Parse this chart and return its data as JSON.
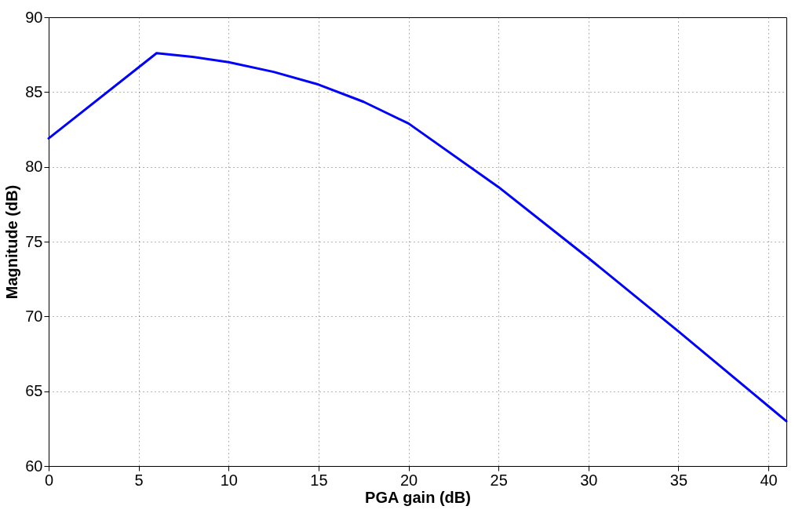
{
  "chart_data": {
    "type": "line",
    "xlabel": "PGA gain (dB)",
    "ylabel": "Magnitude (dB)",
    "x": [
      0,
      6,
      8,
      10,
      12.5,
      15,
      17.5,
      20,
      25,
      30,
      35,
      40,
      41
    ],
    "series": [
      {
        "color": "#0000ff",
        "values": [
          81.9,
          87.6,
          87.35,
          87.0,
          86.35,
          85.5,
          84.35,
          82.9,
          78.65,
          73.9,
          69.0,
          64.0,
          63.0
        ]
      }
    ],
    "xlim": [
      0,
      41
    ],
    "xticks": [
      0,
      5,
      10,
      15,
      20,
      25,
      30,
      35,
      40
    ],
    "ylim": [
      60,
      90
    ],
    "yticks": [
      60,
      65,
      70,
      75,
      80,
      85,
      90
    ],
    "grid": true,
    "line_style": "solid",
    "marker": "none"
  }
}
